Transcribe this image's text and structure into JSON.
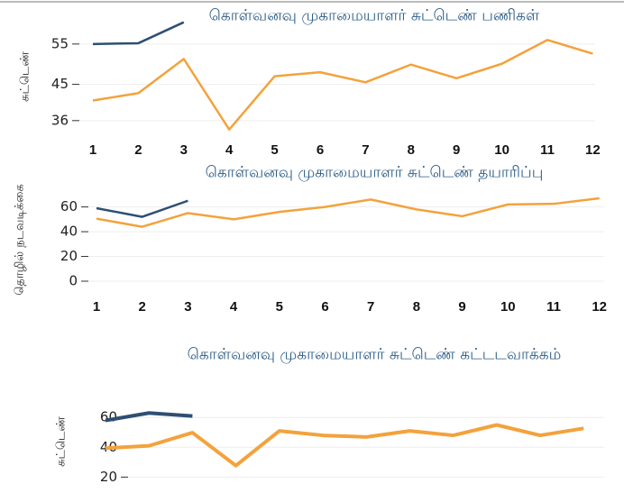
{
  "chart_data": [
    {
      "type": "line",
      "title": "கொள்வனவு முகாமையாளர் சுட்டெண் பணிகள்",
      "y_label": "சுட்டெண்",
      "categories": [
        "1",
        "2",
        "3",
        "4",
        "5",
        "6",
        "7",
        "8",
        "9",
        "10",
        "11",
        "12"
      ],
      "series": [
        {
          "color": "#2e4f73",
          "values": [
            55,
            55.2,
            60.4,
            null,
            null,
            null,
            null,
            null,
            null,
            null,
            null,
            null
          ]
        },
        {
          "color": "#f3a23c",
          "values": [
            41,
            42.8,
            51.3,
            33.8,
            47,
            48,
            45.5,
            49.9,
            46.5,
            50.1,
            56,
            52.6
          ]
        }
      ],
      "ylim": [
        33.5,
        61
      ],
      "yticks": [
        36,
        45,
        55
      ]
    },
    {
      "type": "line",
      "title": "கொள்வனவு முகாமையாளர் சுட்டெண் தயாரிப்பு",
      "y_label": "தொழில் நடவடிக்கை",
      "categories": [
        "1",
        "2",
        "3",
        "4",
        "5",
        "6",
        "7",
        "8",
        "9",
        "10",
        "11",
        "12"
      ],
      "series": [
        {
          "color": "#2e4f73",
          "values": [
            59,
            52,
            65,
            null,
            null,
            null,
            null,
            null,
            null,
            null,
            null,
            null
          ]
        },
        {
          "color": "#f3a23c",
          "values": [
            50.5,
            44,
            55,
            50,
            56,
            60,
            66,
            58,
            52.5,
            62,
            62.5,
            67
          ]
        }
      ],
      "ylim": [
        0,
        67
      ],
      "yticks": [
        0,
        20,
        40,
        60
      ]
    },
    {
      "type": "line",
      "title": "கொள்வனவு முகாமையாளர் சுட்டெண் கட்டடவாக்கம்",
      "y_label": "சுட்டெண்",
      "categories": [
        null,
        null,
        null,
        null,
        null,
        null,
        null,
        null,
        null,
        null,
        null,
        null
      ],
      "series": [
        {
          "color": "#2e4f73",
          "values": [
            58,
            63,
            61,
            null,
            null,
            null,
            null,
            null,
            null,
            null,
            null,
            null
          ]
        },
        {
          "color": "#f3a23c",
          "values": [
            39.4,
            41,
            49.8,
            27.7,
            51,
            48,
            46.9,
            51,
            48,
            55,
            48,
            52.7
          ]
        }
      ],
      "ylim": [
        5.7,
        68
      ],
      "yticks": [
        20,
        40,
        60
      ]
    }
  ]
}
